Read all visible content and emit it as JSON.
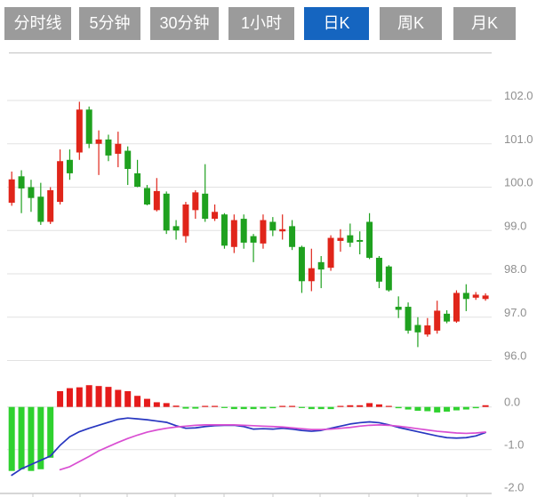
{
  "tabs": {
    "items": [
      {
        "label": "分时线",
        "active": false
      },
      {
        "label": "5分钟",
        "active": false
      },
      {
        "label": "30分钟",
        "active": false
      },
      {
        "label": "1小时",
        "active": false
      },
      {
        "label": "日K",
        "active": true
      },
      {
        "label": "周K",
        "active": false
      },
      {
        "label": "月K",
        "active": false
      }
    ]
  },
  "colors": {
    "tab_active_bg": "#1565c0",
    "tab_inactive_bg": "#9b9b9b",
    "tab_text": "#ffffff",
    "candle_up_red": "#e0251a",
    "candle_down_green": "#1fa11f",
    "macd_bar_red": "#e51b1b",
    "macd_bar_green": "#2fd12f",
    "dif_line_blue": "#2736c0",
    "dea_line_magenta": "#d94ed2",
    "grid": "#e2e2e2",
    "border": "#c9c9c9",
    "axis_text": "#8f8f8f"
  },
  "price_axis": {
    "labels": [
      "102.0",
      "101.0",
      "100.0",
      "99.0",
      "98.0",
      "97.0",
      "96.0"
    ],
    "values": [
      102.0,
      101.0,
      100.0,
      99.0,
      98.0,
      97.0,
      96.0
    ]
  },
  "macd_axis": {
    "labels": [
      "0.0",
      "-1.0",
      "-2.0"
    ],
    "values": [
      0.0,
      -1.0,
      -2.0
    ]
  },
  "chart_data": {
    "type": "candlestick_with_macd",
    "selected_period": "日K",
    "price_ylim": [
      95.8,
      102.2
    ],
    "macd_ylim": [
      -2.1,
      0.6
    ],
    "grid": "on",
    "candles_ohlc": [
      [
        99.64,
        100.36,
        99.57,
        100.18
      ],
      [
        100.25,
        100.39,
        99.4,
        99.97
      ],
      [
        100.0,
        100.17,
        99.43,
        99.75
      ],
      [
        99.78,
        100.1,
        99.13,
        99.2
      ],
      [
        99.2,
        100.0,
        99.15,
        99.93
      ],
      [
        99.66,
        100.87,
        99.6,
        100.6
      ],
      [
        100.63,
        100.87,
        100.17,
        100.32
      ],
      [
        100.8,
        101.97,
        100.63,
        101.79
      ],
      [
        101.79,
        101.86,
        100.9,
        101.0
      ],
      [
        101.0,
        101.31,
        100.28,
        101.1
      ],
      [
        101.1,
        101.21,
        100.6,
        100.73
      ],
      [
        100.77,
        101.28,
        100.46,
        101.0
      ],
      [
        100.84,
        100.94,
        100.05,
        100.42
      ],
      [
        100.32,
        100.63,
        100.0,
        100.01
      ],
      [
        99.98,
        100.05,
        99.58,
        99.6
      ],
      [
        99.47,
        100.21,
        99.44,
        99.91
      ],
      [
        99.85,
        99.9,
        98.92,
        99.0
      ],
      [
        99.1,
        99.24,
        98.79,
        99.0
      ],
      [
        98.87,
        99.66,
        98.72,
        99.6
      ],
      [
        99.47,
        99.93,
        99.27,
        99.88
      ],
      [
        99.85,
        100.53,
        99.2,
        99.27
      ],
      [
        99.27,
        99.6,
        99.22,
        99.43
      ],
      [
        99.37,
        99.4,
        98.58,
        98.65
      ],
      [
        98.62,
        99.37,
        98.48,
        99.24
      ],
      [
        99.27,
        99.37,
        98.58,
        98.72
      ],
      [
        98.87,
        98.92,
        98.27,
        98.72
      ],
      [
        98.7,
        99.37,
        98.58,
        99.24
      ],
      [
        99.2,
        99.31,
        98.87,
        99.0
      ],
      [
        98.98,
        99.37,
        98.79,
        99.03
      ],
      [
        99.1,
        99.24,
        98.55,
        98.62
      ],
      [
        98.62,
        98.65,
        97.56,
        97.83
      ],
      [
        97.83,
        98.58,
        97.6,
        98.13
      ],
      [
        98.27,
        98.41,
        97.67,
        98.1
      ],
      [
        98.14,
        98.89,
        98.07,
        98.83
      ],
      [
        98.76,
        99.03,
        98.51,
        98.83
      ],
      [
        98.89,
        99.16,
        98.62,
        98.72
      ],
      [
        98.78,
        98.98,
        98.45,
        98.74
      ],
      [
        99.2,
        99.4,
        98.34,
        98.37
      ],
      [
        98.37,
        98.41,
        97.67,
        97.82
      ],
      [
        98.17,
        98.2,
        97.59,
        97.62
      ],
      [
        97.24,
        97.48,
        96.98,
        97.17
      ],
      [
        97.24,
        97.34,
        96.62,
        96.69
      ],
      [
        96.82,
        97.0,
        96.31,
        96.65
      ],
      [
        96.6,
        96.98,
        96.55,
        96.81
      ],
      [
        96.69,
        97.38,
        96.62,
        97.15
      ],
      [
        97.08,
        97.16,
        96.86,
        96.9
      ],
      [
        96.9,
        97.62,
        96.87,
        97.56
      ],
      [
        97.56,
        97.76,
        97.14,
        97.42
      ],
      [
        97.45,
        97.58,
        97.4,
        97.52
      ],
      [
        97.42,
        97.55,
        97.38,
        97.5
      ]
    ],
    "macd_histogram": [
      -1.5,
      -1.46,
      -1.5,
      -1.46,
      -1.19,
      0.37,
      0.44,
      0.46,
      0.51,
      0.49,
      0.47,
      0.4,
      0.37,
      0.26,
      0.19,
      0.11,
      0.09,
      0.03,
      -0.04,
      -0.04,
      0.02,
      0.01,
      -0.01,
      -0.05,
      -0.05,
      -0.05,
      -0.04,
      -0.03,
      0.01,
      0.02,
      -0.02,
      -0.05,
      -0.05,
      -0.05,
      0.02,
      0.04,
      0.04,
      0.09,
      0.06,
      0.02,
      -0.03,
      -0.06,
      -0.09,
      -0.1,
      -0.13,
      -0.11,
      -0.08,
      -0.06,
      -0.03,
      0.04
    ],
    "dif": [
      -1.6,
      -1.45,
      -1.35,
      -1.25,
      -1.15,
      -0.9,
      -0.7,
      -0.58,
      -0.5,
      -0.43,
      -0.36,
      -0.29,
      -0.26,
      -0.28,
      -0.3,
      -0.33,
      -0.36,
      -0.44,
      -0.5,
      -0.49,
      -0.46,
      -0.44,
      -0.43,
      -0.43,
      -0.46,
      -0.52,
      -0.51,
      -0.52,
      -0.5,
      -0.52,
      -0.55,
      -0.57,
      -0.55,
      -0.5,
      -0.45,
      -0.4,
      -0.37,
      -0.35,
      -0.37,
      -0.42,
      -0.48,
      -0.53,
      -0.58,
      -0.63,
      -0.68,
      -0.72,
      -0.73,
      -0.72,
      -0.68,
      -0.6
    ],
    "dea": [
      null,
      null,
      null,
      null,
      null,
      -1.47,
      -1.4,
      -1.28,
      -1.16,
      -1.03,
      -0.93,
      -0.83,
      -0.74,
      -0.66,
      -0.59,
      -0.54,
      -0.5,
      -0.47,
      -0.45,
      -0.43,
      -0.42,
      -0.42,
      -0.42,
      -0.42,
      -0.43,
      -0.44,
      -0.45,
      -0.46,
      -0.47,
      -0.49,
      -0.51,
      -0.53,
      -0.53,
      -0.52,
      -0.5,
      -0.48,
      -0.45,
      -0.43,
      -0.42,
      -0.43,
      -0.45,
      -0.48,
      -0.51,
      -0.54,
      -0.57,
      -0.59,
      -0.61,
      -0.62,
      -0.61,
      -0.59
    ]
  }
}
